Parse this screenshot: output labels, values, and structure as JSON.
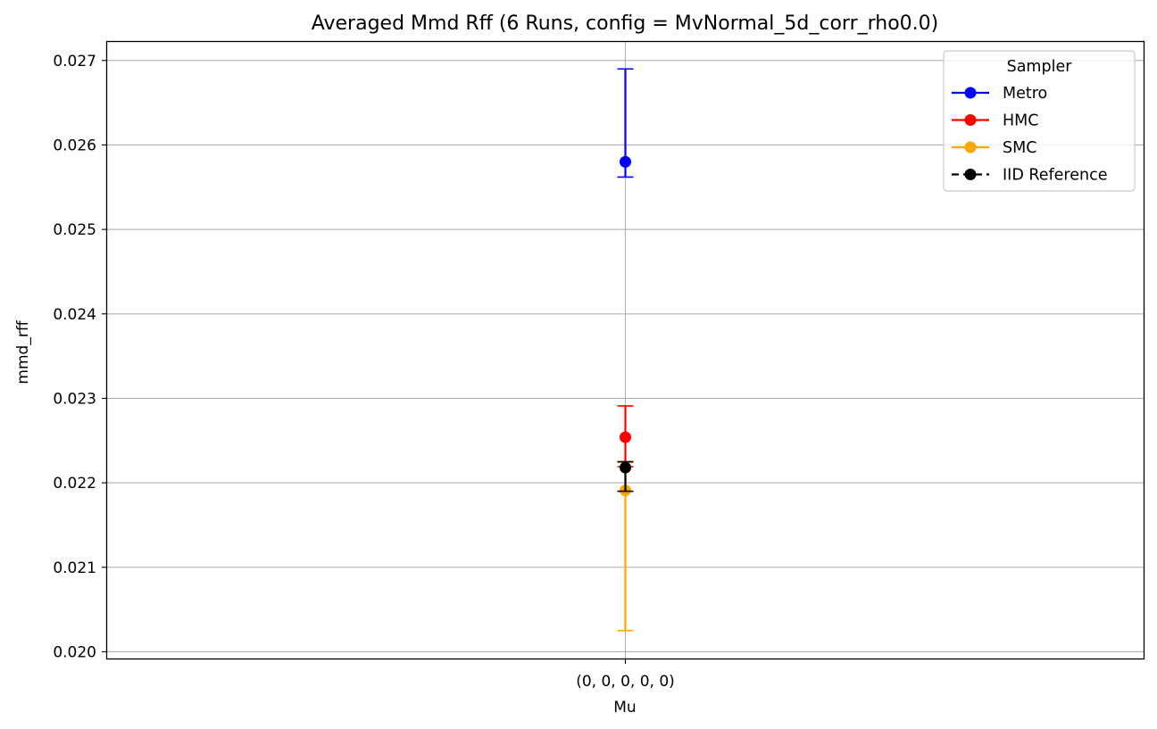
{
  "chart_data": {
    "type": "scatter",
    "title": "Averaged Mmd Rff (6 Runs, config = MvNormal_5d_corr_rho0.0)",
    "xlabel": "Mu",
    "ylabel": "mmd_rff",
    "categories": [
      "(0, 0, 0, 0, 0)"
    ],
    "ylim": [
      0.01992,
      0.02723
    ],
    "yticks": [
      0.02,
      0.021,
      0.022,
      0.023,
      0.024,
      0.025,
      0.026,
      0.027
    ],
    "ytick_labels": [
      "0.020",
      "0.021",
      "0.022",
      "0.023",
      "0.024",
      "0.025",
      "0.026",
      "0.027"
    ],
    "grid": true,
    "legend": {
      "title": "Sampler",
      "placement": "top-right"
    },
    "series": [
      {
        "name": "Metro",
        "color": "#0000ff",
        "values": [
          0.0258
        ],
        "err_low": [
          0.02562
        ],
        "err_high": [
          0.0269
        ],
        "linestyle": "solid"
      },
      {
        "name": "HMC",
        "color": "#ff0000",
        "values": [
          0.02254
        ],
        "err_low": [
          0.02219
        ],
        "err_high": [
          0.02291
        ],
        "linestyle": "solid"
      },
      {
        "name": "SMC",
        "color": "#ffa500",
        "values": [
          0.02191
        ],
        "err_low": [
          0.02025
        ],
        "err_high": [
          0.02224
        ],
        "linestyle": "solid"
      },
      {
        "name": "IID Reference",
        "color": "#000000",
        "values": [
          0.02218
        ],
        "err_low": [
          0.0219
        ],
        "err_high": [
          0.02225
        ],
        "linestyle": "dashed"
      }
    ]
  }
}
